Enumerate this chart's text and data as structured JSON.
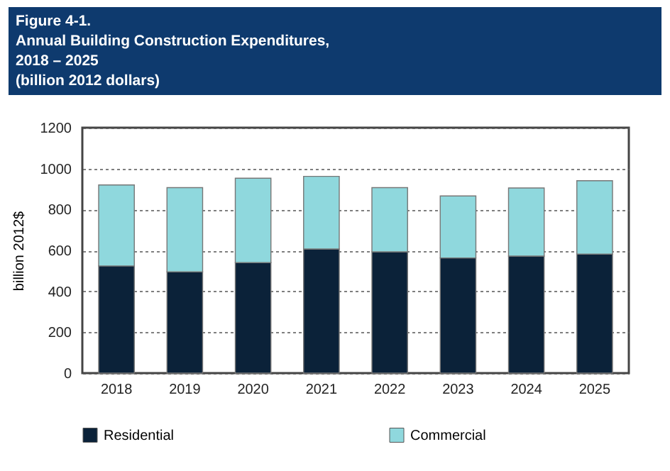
{
  "chart_data": {
    "type": "bar",
    "title": "Figure 4-1.\nAnnual Building Construction Expenditures,\n2018 – 2025",
    "subtitle": "(billion 2012 dollars)",
    "ylabel": "billion 2012$",
    "categories": [
      "2018",
      "2019",
      "2020",
      "2021",
      "2022",
      "2023",
      "2024",
      "2025"
    ],
    "stacked": true,
    "series": [
      {
        "name": "Residential",
        "color": "#0b2239",
        "values": [
          524,
          495,
          540,
          607,
          593,
          563,
          572,
          582
        ]
      },
      {
        "name": "Commercial",
        "color": "#8fd8dd",
        "values": [
          396,
          412,
          413,
          355,
          314,
          303,
          333,
          359
        ]
      }
    ],
    "ylim": [
      0,
      1200
    ],
    "yticks": [
      0,
      200,
      400,
      600,
      800,
      1000,
      1200
    ],
    "grid": "y",
    "legend": "bottom"
  }
}
